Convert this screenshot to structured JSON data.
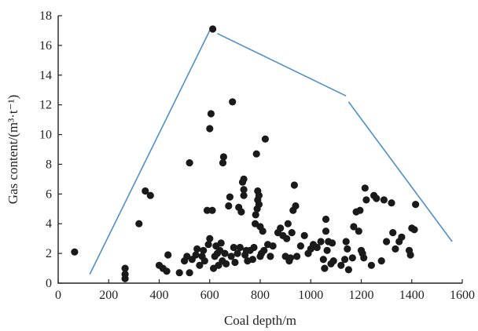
{
  "chart_data": {
    "type": "scatter",
    "xlabel": "Coal depth/m",
    "ylabel": "Gas content/(m³·t⁻¹)",
    "xlim": [
      0,
      1600
    ],
    "ylim": [
      0,
      18
    ],
    "xticks": [
      0,
      200,
      400,
      600,
      800,
      1000,
      1200,
      1400,
      1600
    ],
    "yticks": [
      0,
      2,
      4,
      6,
      8,
      10,
      12,
      14,
      16,
      18
    ],
    "grid": false,
    "points": [
      [
        65,
        2.1
      ],
      [
        265,
        1.0
      ],
      [
        265,
        0.6
      ],
      [
        265,
        0.3
      ],
      [
        320,
        4.0
      ],
      [
        345,
        6.2
      ],
      [
        365,
        5.9
      ],
      [
        400,
        1.2
      ],
      [
        415,
        1.0
      ],
      [
        430,
        0.8
      ],
      [
        435,
        1.9
      ],
      [
        480,
        0.7
      ],
      [
        500,
        1.5
      ],
      [
        510,
        1.8
      ],
      [
        520,
        0.7
      ],
      [
        520,
        8.1
      ],
      [
        530,
        1.6
      ],
      [
        545,
        1.9
      ],
      [
        550,
        2.3
      ],
      [
        560,
        1.2
      ],
      [
        570,
        1.8
      ],
      [
        575,
        2.2
      ],
      [
        580,
        1.5
      ],
      [
        590,
        4.9
      ],
      [
        595,
        2.6
      ],
      [
        600,
        3.0
      ],
      [
        600,
        10.4
      ],
      [
        605,
        11.4
      ],
      [
        610,
        4.9
      ],
      [
        612,
        17.1
      ],
      [
        615,
        1.0
      ],
      [
        620,
        1.8
      ],
      [
        625,
        2.5
      ],
      [
        630,
        2.0
      ],
      [
        635,
        1.2
      ],
      [
        640,
        2.2
      ],
      [
        645,
        2.7
      ],
      [
        650,
        1.5
      ],
      [
        652,
        8.1
      ],
      [
        655,
        8.5
      ],
      [
        660,
        2.0
      ],
      [
        665,
        1.3
      ],
      [
        675,
        5.2
      ],
      [
        680,
        5.8
      ],
      [
        685,
        1.8
      ],
      [
        690,
        12.2
      ],
      [
        695,
        2.4
      ],
      [
        700,
        1.4
      ],
      [
        710,
        2.0
      ],
      [
        715,
        5.1
      ],
      [
        720,
        2.4
      ],
      [
        725,
        4.8
      ],
      [
        730,
        6.8
      ],
      [
        735,
        7.0
      ],
      [
        735,
        6.3
      ],
      [
        735,
        5.9
      ],
      [
        740,
        1.9
      ],
      [
        745,
        2.2
      ],
      [
        750,
        1.5
      ],
      [
        760,
        2.2
      ],
      [
        770,
        1.6
      ],
      [
        775,
        2.4
      ],
      [
        780,
        4.0
      ],
      [
        782,
        4.6
      ],
      [
        785,
        8.7
      ],
      [
        788,
        5.0
      ],
      [
        790,
        6.2
      ],
      [
        790,
        5.6
      ],
      [
        795,
        5.9
      ],
      [
        795,
        5.3
      ],
      [
        800,
        3.8
      ],
      [
        800,
        1.8
      ],
      [
        805,
        2.0
      ],
      [
        810,
        3.5
      ],
      [
        815,
        2.2
      ],
      [
        820,
        9.7
      ],
      [
        830,
        2.6
      ],
      [
        840,
        1.8
      ],
      [
        850,
        2.5
      ],
      [
        870,
        3.4
      ],
      [
        880,
        3.7
      ],
      [
        890,
        3.2
      ],
      [
        900,
        1.8
      ],
      [
        905,
        3.0
      ],
      [
        910,
        4.0
      ],
      [
        915,
        1.5
      ],
      [
        920,
        1.7
      ],
      [
        925,
        3.4
      ],
      [
        930,
        4.9
      ],
      [
        935,
        6.6
      ],
      [
        940,
        5.2
      ],
      [
        945,
        1.8
      ],
      [
        960,
        2.5
      ],
      [
        975,
        3.2
      ],
      [
        990,
        2.0
      ],
      [
        1000,
        2.3
      ],
      [
        1010,
        2.6
      ],
      [
        1025,
        2.4
      ],
      [
        1040,
        2.8
      ],
      [
        1050,
        1.6
      ],
      [
        1055,
        1.0
      ],
      [
        1060,
        4.3
      ],
      [
        1060,
        3.5
      ],
      [
        1065,
        2.2
      ],
      [
        1070,
        2.8
      ],
      [
        1080,
        1.3
      ],
      [
        1085,
        2.7
      ],
      [
        1090,
        1.5
      ],
      [
        1120,
        1.2
      ],
      [
        1135,
        1.6
      ],
      [
        1140,
        2.8
      ],
      [
        1145,
        2.3
      ],
      [
        1150,
        0.9
      ],
      [
        1165,
        1.7
      ],
      [
        1170,
        3.8
      ],
      [
        1180,
        4.8
      ],
      [
        1190,
        3.5
      ],
      [
        1195,
        4.9
      ],
      [
        1200,
        2.2
      ],
      [
        1205,
        2.0
      ],
      [
        1210,
        1.7
      ],
      [
        1215,
        6.4
      ],
      [
        1220,
        5.6
      ],
      [
        1240,
        1.2
      ],
      [
        1250,
        5.9
      ],
      [
        1260,
        5.7
      ],
      [
        1280,
        1.5
      ],
      [
        1290,
        5.6
      ],
      [
        1300,
        2.8
      ],
      [
        1320,
        5.4
      ],
      [
        1325,
        3.4
      ],
      [
        1335,
        2.3
      ],
      [
        1350,
        2.8
      ],
      [
        1360,
        3.1
      ],
      [
        1390,
        2.2
      ],
      [
        1395,
        1.9
      ],
      [
        1400,
        3.7
      ],
      [
        1410,
        3.6
      ],
      [
        1415,
        5.3
      ]
    ],
    "envelope": [
      [
        125,
        0.6
      ],
      [
        600,
        17.0
      ],
      [
        630,
        16.8
      ],
      [
        1140,
        12.6
      ],
      [
        1150,
        12.2
      ],
      [
        1560,
        2.8
      ]
    ]
  }
}
